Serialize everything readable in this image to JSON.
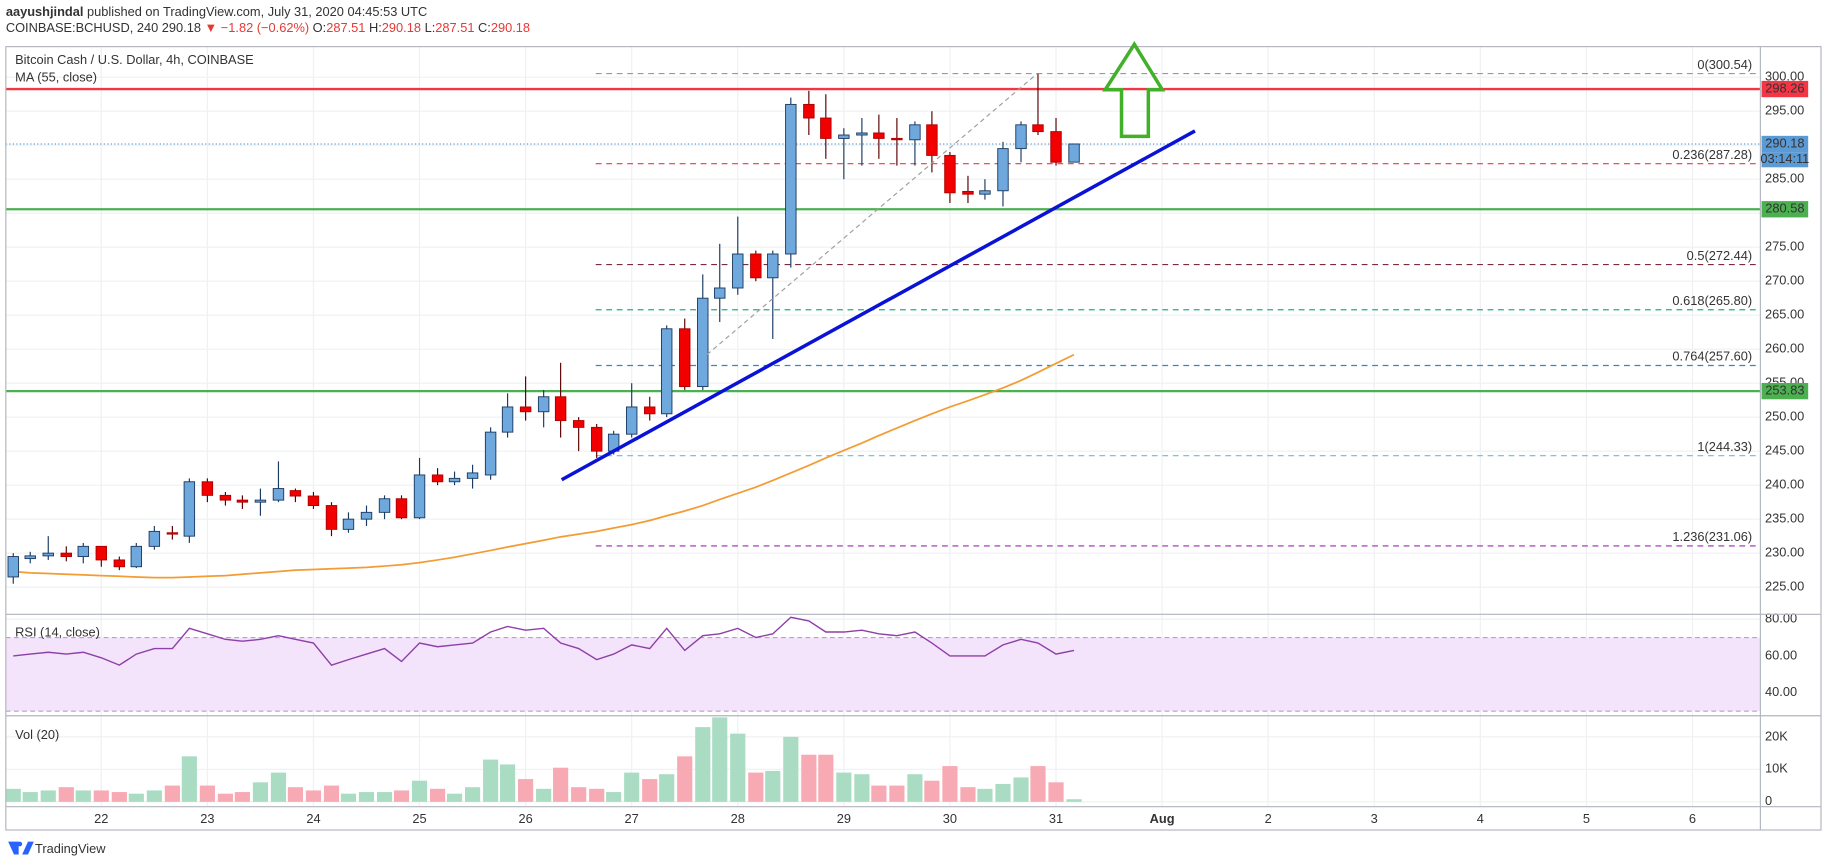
{
  "header": {
    "user": "aayushjindal",
    "published": "published on TradingView.com, July 31, 2020 04:45:53 UTC",
    "symbol": "COINBASE:BCHUSD, 240",
    "last": "290.18",
    "change": "▼ −1.82 (−0.62%)",
    "ohlc": [
      {
        "key": "O:",
        "value": "287.51"
      },
      {
        "key": "H:",
        "value": "290.18"
      },
      {
        "key": "L:",
        "value": "287.51"
      },
      {
        "key": "C:",
        "value": "290.18"
      }
    ]
  },
  "chart_data": [
    {
      "type": "candlestick",
      "title": "Bitcoin Cash / U.S. Dollar, 4h, COINBASE",
      "x": [
        21.17,
        21.33,
        21.5,
        21.67,
        21.83,
        22,
        22.17,
        22.33,
        22.5,
        22.67,
        22.83,
        23,
        23.17,
        23.33,
        23.5,
        23.67,
        23.83,
        24,
        24.17,
        24.33,
        24.5,
        24.67,
        24.83,
        25,
        25.17,
        25.33,
        25.5,
        25.67,
        25.83,
        26,
        26.17,
        26.33,
        26.5,
        26.67,
        26.83,
        27,
        27.17,
        27.33,
        27.5,
        27.67,
        27.83,
        28,
        28.17,
        28.33,
        28.5,
        28.67,
        28.83,
        29,
        29.17,
        29.33,
        29.5,
        29.67,
        29.83,
        30,
        30.17,
        30.33,
        30.5,
        30.67,
        30.83,
        31,
        31.17
      ],
      "open": [
        226.5,
        229.2,
        229.6,
        230,
        229.5,
        231,
        229,
        228,
        231,
        233,
        232.5,
        240.5,
        238.5,
        237.8,
        237.5,
        237.8,
        239.2,
        238.4,
        237,
        233.5,
        235,
        236,
        238,
        235.2,
        241.5,
        240.5,
        241,
        241.5,
        247.8,
        251.5,
        250.8,
        253,
        249.5,
        248.5,
        245,
        247.5,
        251.5,
        250.5,
        263,
        254.5,
        267.5,
        269,
        274,
        270.5,
        274,
        296,
        294,
        291,
        291.5,
        291.8,
        291,
        290.8,
        293,
        288.5,
        283.2,
        282.8,
        283.3,
        289.5,
        293,
        292,
        287.51
      ],
      "high": [
        230,
        230.2,
        232.5,
        231,
        231.5,
        231,
        229.5,
        231.5,
        234,
        234,
        241,
        241,
        239,
        238.5,
        239.5,
        243.5,
        239.5,
        239,
        237.5,
        236,
        237,
        238.5,
        238.5,
        244,
        242.5,
        242,
        243,
        248.5,
        253.5,
        256,
        254,
        258,
        250,
        249,
        248,
        255,
        253,
        263.5,
        264.5,
        271,
        275.5,
        279.5,
        274.5,
        274.5,
        297,
        298,
        297.5,
        292.5,
        294,
        294.5,
        294,
        293.5,
        295,
        289,
        285.5,
        285,
        290.5,
        293.5,
        300.5,
        294,
        290.18
      ],
      "low": [
        225.5,
        228.5,
        229,
        228.8,
        228.5,
        228,
        227.5,
        227.8,
        230.5,
        232,
        231.5,
        237.5,
        237,
        236.5,
        235.5,
        237.5,
        237.5,
        236.5,
        232.5,
        233,
        234,
        235,
        235,
        235,
        240,
        240,
        239.5,
        240.8,
        247,
        249.5,
        248.5,
        247,
        245,
        244,
        244.5,
        247,
        249.5,
        250,
        254,
        254,
        264,
        268,
        270,
        261.5,
        272,
        291.5,
        288,
        285,
        287,
        288,
        287,
        287,
        286,
        281.5,
        281.5,
        282,
        281,
        287.5,
        291.5,
        287,
        287.51
      ],
      "close": [
        229.5,
        229.6,
        230,
        229.5,
        231,
        229,
        228,
        231,
        233.2,
        232.8,
        240.5,
        238.5,
        237.8,
        237.5,
        237.8,
        239.5,
        238.4,
        237,
        233.5,
        235,
        236,
        238,
        235.2,
        241.5,
        240.5,
        241,
        241.8,
        247.8,
        251.5,
        250.8,
        253,
        249.5,
        248.5,
        245,
        247.5,
        251.5,
        250.5,
        263,
        254.5,
        267.5,
        269,
        274,
        270.5,
        274,
        296,
        294,
        291,
        291.5,
        291.8,
        291,
        290.8,
        293,
        288.5,
        283,
        282.8,
        283.3,
        289.5,
        293,
        292,
        287.5,
        290.18
      ],
      "up_color": "#6fa8dc",
      "down_color": "#f20000",
      "series": [
        {
          "name": "MA (55, close)",
          "color": "#f39c34",
          "values": [
            227.3,
            227.1,
            227,
            226.9,
            226.8,
            226.7,
            226.6,
            226.5,
            226.4,
            226.4,
            226.5,
            226.6,
            226.7,
            226.9,
            227.1,
            227.3,
            227.5,
            227.6,
            227.7,
            227.8,
            227.9,
            228.1,
            228.3,
            228.6,
            229,
            229.4,
            229.9,
            230.4,
            230.9,
            231.4,
            231.9,
            232.4,
            232.8,
            233.2,
            233.7,
            234.2,
            234.8,
            235.5,
            236.2,
            237,
            237.9,
            238.8,
            239.7,
            240.7,
            241.8,
            242.9,
            244,
            245.1,
            246.2,
            247.3,
            248.4,
            249.5,
            250.5,
            251.5,
            252.4,
            253.3,
            254.3,
            255.4,
            256.6,
            257.9,
            259.2
          ]
        }
      ],
      "xlim": [
        21.1,
        37.64
      ],
      "xticks": [
        22,
        23,
        24,
        25,
        26,
        27,
        28,
        29,
        30,
        31,
        {
          "value": 32,
          "label": "Aug"
        },
        {
          "value": 33,
          "label": "2"
        },
        {
          "value": 34,
          "label": "3"
        },
        {
          "value": 35,
          "label": "4"
        },
        {
          "value": 36,
          "label": "5"
        },
        {
          "value": 37,
          "label": "6"
        }
      ],
      "ylim": [
        221,
        304.5
      ],
      "yticks": [
        {
          "value": 225,
          "label": "225.00"
        },
        {
          "value": 230,
          "label": "230.00"
        },
        {
          "value": 235,
          "label": "235.00"
        },
        {
          "value": 240,
          "label": "240.00"
        },
        {
          "value": 245,
          "label": "245.00"
        },
        {
          "value": 250,
          "label": "250.00"
        },
        {
          "value": 255,
          "label": "255.00"
        },
        {
          "value": 260,
          "label": "260.00"
        },
        {
          "value": 265,
          "label": "265.00"
        },
        {
          "value": 270,
          "label": "270.00"
        },
        {
          "value": 275,
          "label": "275.00"
        },
        {
          "value": 280,
          "label": "280.00"
        },
        {
          "value": 285,
          "label": "285.00"
        },
        {
          "value": 290,
          "label": "290.00"
        },
        {
          "value": 295,
          "label": "295.00"
        },
        {
          "value": 300,
          "label": "300.00"
        }
      ],
      "grid": true,
      "levels": [
        {
          "value": 298.26,
          "color": "#f23645"
        },
        {
          "value": 280.58,
          "color": "#4caf50"
        },
        {
          "value": 253.83,
          "color": "#4caf50"
        }
      ],
      "fib": [
        {
          "value": 300.54,
          "label": "0(300.54)",
          "color": "#9598a1"
        },
        {
          "value": 287.28,
          "label": "0.236(287.28)",
          "color": "#f23645"
        },
        {
          "value": 272.44,
          "label": "0.5(272.44)",
          "color": "#7d2a3c"
        },
        {
          "value": 265.8,
          "label": "0.618(265.80)",
          "color": "#22ab94"
        },
        {
          "value": 257.6,
          "label": "0.764(257.60)",
          "color": "#2a8cc4"
        },
        {
          "value": 244.33,
          "label": "1(244.33)",
          "color": "#6fbad8"
        },
        {
          "value": 231.06,
          "label": "1.236(231.06)",
          "color": "#9c27b0"
        }
      ],
      "trendlines": [
        {
          "color": "#0a12d6",
          "x": [
            26.34,
            32.31
          ],
          "y": [
            240.8,
            292.1
          ]
        },
        {
          "color": "#9e9e9e",
          "dashed": true,
          "x": [
            27.71,
            30.82
          ],
          "y": [
            259.2,
            300.5
          ]
        }
      ],
      "last": {
        "value": 290.18,
        "color": "#5b9bd5",
        "countdown": "03:14:11"
      }
    },
    {
      "type": "line",
      "title": "RSI (14, close)",
      "color": "#8e3fa8",
      "values": [
        60,
        61,
        62,
        61,
        62,
        59,
        55,
        61,
        64,
        64,
        75,
        72,
        69,
        68,
        69,
        71,
        69,
        67,
        55,
        58,
        61,
        64,
        57,
        67,
        65,
        66,
        67,
        73,
        76,
        74,
        75,
        67,
        64,
        58,
        61,
        66,
        64,
        75,
        63,
        71,
        72,
        75,
        70,
        72,
        81,
        79,
        73,
        73,
        74,
        72,
        71,
        73,
        67,
        60,
        60,
        60,
        66,
        69,
        67,
        61,
        63
      ],
      "band": [
        30,
        70
      ],
      "band_color": "#f3e3fb",
      "ylim": [
        27.5,
        82.6
      ],
      "yticks": [
        {
          "value": 40,
          "label": "40.00"
        },
        {
          "value": 60,
          "label": "60.00"
        },
        {
          "value": 80,
          "label": "80.00"
        }
      ]
    },
    {
      "type": "bar",
      "title": "Vol (20)",
      "up_color": "#a9dcc3",
      "down_color": "#f7a9b4",
      "values": [
        4,
        3,
        3.5,
        4.5,
        3.5,
        3.5,
        3,
        2.5,
        3.5,
        5,
        14,
        5,
        2.5,
        3,
        6,
        9,
        4.5,
        3.5,
        5,
        2.5,
        3,
        3,
        3.5,
        6.5,
        4,
        2.5,
        4.5,
        13,
        11.5,
        7,
        4,
        10.5,
        4.5,
        4,
        3,
        9,
        7,
        8.5,
        14,
        23,
        26,
        21,
        9,
        9.5,
        20,
        14.5,
        14.5,
        9,
        8.5,
        5,
        5,
        8.5,
        6.5,
        11,
        4.5,
        4,
        5.5,
        7.5,
        11,
        6,
        0.8
      ],
      "ylim": [
        -1.5,
        26.5
      ],
      "yticks": [
        0,
        {
          "value": 10,
          "label": "10K"
        },
        {
          "value": 20,
          "label": "20K"
        }
      ]
    }
  ],
  "footer": {
    "brand": "TradingView"
  }
}
